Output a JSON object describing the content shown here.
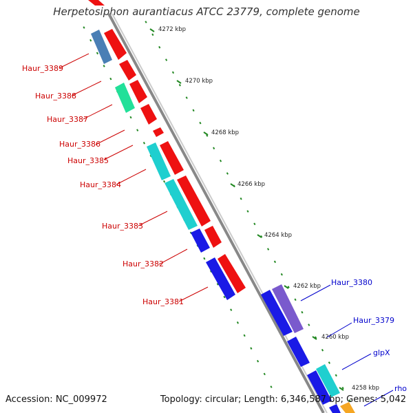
{
  "title": "Herpetosiphon aurantiacus ATCC 23779, complete genome",
  "footer": {
    "accession": "Accession: NC_009972",
    "summary": "Topology: circular; Length: 6,346,587 bp; Genes: 5,042"
  },
  "ticks": [
    "4272 kbp",
    "4270 kbp",
    "4268 kbp",
    "4266 kbp",
    "4264 kbp",
    "4262 kbp",
    "4260 kbp",
    "4258 kbp"
  ],
  "left_genes": [
    "Haur_3389",
    "Haur_3388",
    "Haur_3387",
    "Haur_3386",
    "Haur_3385",
    "Haur_3384",
    "Haur_3383",
    "Haur_3382",
    "Haur_3381"
  ],
  "right_genes": [
    "Haur_3380",
    "Haur_3379",
    "glpX",
    "rho"
  ],
  "colors": {
    "backbone": "#8a8a8a",
    "red_cds": "#ee1111",
    "blue_cds": "#1a1ae6",
    "cyan_cds": "#1fcfcf",
    "teal_cds": "#20b3b3",
    "steel_cds": "#4a7fb5",
    "mint_cds": "#22e099",
    "purple_cds": "#7a5acd",
    "orange_cds": "#f5a623",
    "left_label": "#cc0000",
    "right_label": "#0000cc",
    "tick": "#228822"
  }
}
